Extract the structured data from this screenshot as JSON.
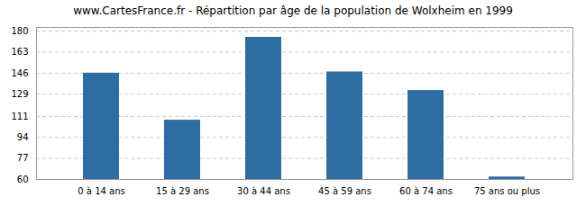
{
  "chart_data": {
    "type": "bar",
    "title": "www.CartesFrance.fr - Répartition par âge de la population de Wolxheim en 1999",
    "categories": [
      "0 à 14 ans",
      "15 à 29 ans",
      "30 à 44 ans",
      "45 à 59 ans",
      "60 à 74 ans",
      "75 ans ou plus"
    ],
    "values": [
      146,
      108,
      175,
      147,
      132,
      62
    ],
    "color": "#2e6da4",
    "ylim": [
      60,
      183
    ],
    "yticks": [
      60,
      77,
      94,
      111,
      129,
      146,
      163,
      180
    ],
    "grid": true
  }
}
